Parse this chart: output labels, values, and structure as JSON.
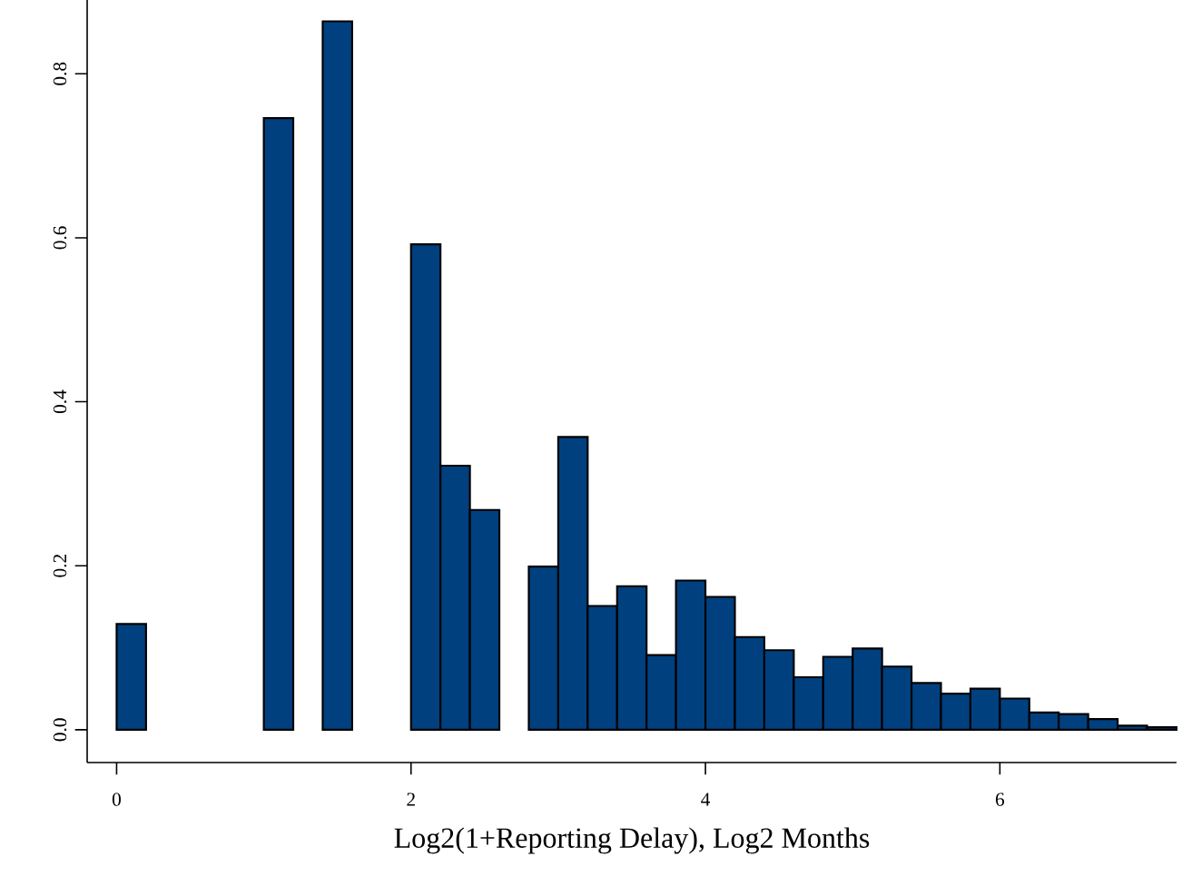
{
  "chart_data": {
    "type": "histogram",
    "xlabel": "Log2(1+Reporting Delay), Log2 Months",
    "bins": [
      0,
      0.2,
      0.4,
      0.6,
      0.8,
      1.0,
      1.2,
      1.4,
      1.6,
      1.8,
      2.0,
      2.2,
      2.4,
      2.6,
      2.8,
      3.0,
      3.2,
      3.4,
      3.6,
      3.8,
      4.0,
      4.2,
      4.4,
      4.6,
      4.8,
      5.0,
      5.2,
      5.4,
      5.6,
      5.8,
      6.0,
      6.2,
      6.4,
      6.6,
      6.8,
      7.0,
      7.2
    ],
    "values": [
      0.129,
      0,
      0,
      0,
      0,
      0.746,
      0,
      0.864,
      0,
      0,
      0.592,
      0.322,
      0.268,
      0,
      0.199,
      0.357,
      0.151,
      0.175,
      0.091,
      0.182,
      0.162,
      0.113,
      0.097,
      0.064,
      0.089,
      0.099,
      0.077,
      0.057,
      0.044,
      0.05,
      0.038,
      0.021,
      0.019,
      0.013,
      0.005,
      0.003
    ],
    "color": "#00407f",
    "xlim": [
      -0.2,
      7.2
    ],
    "ylim": [
      -0.04,
      0.89
    ],
    "xticks": [
      0,
      2,
      4,
      6
    ],
    "yticks": [
      {
        "value": 0,
        "label": "0.0"
      },
      0.2,
      0.4,
      0.6,
      0.8
    ]
  }
}
